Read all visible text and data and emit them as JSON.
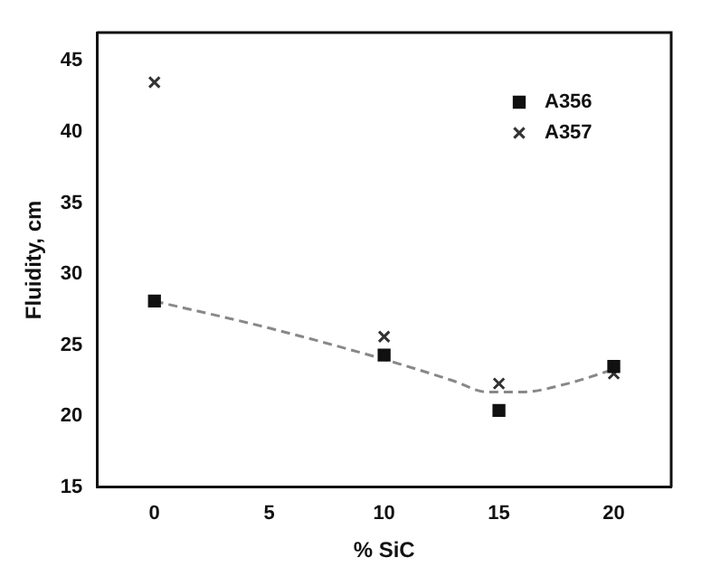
{
  "chart_data": {
    "type": "scatter",
    "xlabel": "% SiC",
    "ylabel": "Fluidity, cm",
    "x": [
      0,
      10,
      15,
      20
    ],
    "series": [
      {
        "name": "A356",
        "color": "#111111",
        "marker": "square",
        "values": [
          28.1,
          24.3,
          20.4,
          23.5
        ]
      },
      {
        "name": "A357",
        "color": "#333333",
        "marker": "cross",
        "values": [
          43.5,
          25.6,
          22.3,
          23.0
        ]
      },
      {
        "type": "line",
        "color": "#888888",
        "marker": "none",
        "line_style": "dashed",
        "x": [
          0,
          5,
          10,
          13,
          14.5,
          16,
          18,
          20
        ],
        "values": [
          28.1,
          26.2,
          24.0,
          22.5,
          21.7,
          21.7,
          22.3,
          23.3
        ]
      }
    ],
    "xlim": [
      -2.5,
      22.5
    ],
    "xticks": [
      0,
      5,
      10,
      15,
      20
    ],
    "ylim": [
      15,
      47
    ],
    "yticks": [
      15,
      20,
      25,
      30,
      35,
      40,
      45
    ],
    "grid": false,
    "legend": "top right"
  }
}
